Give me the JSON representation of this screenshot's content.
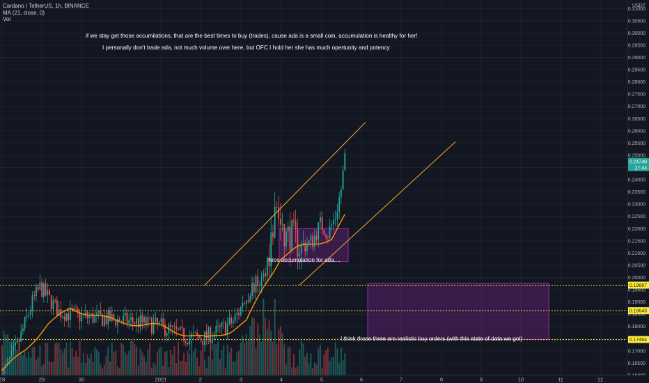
{
  "legend": {
    "symbol_line": "Cardano / TetherUS, 1h, BINANCE",
    "ma_line": "MA (21, close, 0)",
    "vol_line": "Vol"
  },
  "currency": "USDT",
  "colors": {
    "background": "#131722",
    "up": "#26a69a",
    "down": "#ef5350",
    "ma": "#ff9800",
    "channel": "#ffa726",
    "box": "#9c27b0",
    "level": "#ffeb3b",
    "last_price": "#26a69a"
  },
  "chart_data": {
    "type": "candlestick",
    "x_axis_ticks": [
      "28",
      "29",
      "30",
      "2021",
      "2",
      "3",
      "4",
      "5",
      "6",
      "7",
      "8",
      "9",
      "10",
      "11",
      "12"
    ],
    "y_axis_ticks": [
      "0.31000",
      "0.30500",
      "0.30000",
      "0.29500",
      "0.29000",
      "0.28500",
      "0.28000",
      "0.27500",
      "0.27000",
      "0.26500",
      "0.26000",
      "0.25500",
      "0.25000",
      "0.24500",
      "0.24000",
      "0.23500",
      "0.23000",
      "0.22500",
      "0.22000",
      "0.21500",
      "0.21000",
      "0.20500",
      "0.20000",
      "0.19500",
      "0.19000",
      "0.18500",
      "0.18000",
      "0.17500",
      "0.17000",
      "0.16500",
      "0.16000"
    ],
    "y_range": [
      0.158,
      0.3115
    ],
    "x_range": [
      27.9,
      13.3
    ],
    "last_price": {
      "price": "0.24748",
      "countdown": "27:44",
      "value": 0.24748
    },
    "levels": [
      {
        "label": "0.19687",
        "value": 0.19687
      },
      {
        "label": "0.18643",
        "value": 0.18643
      },
      {
        "label": "0.17464",
        "value": 0.17464
      }
    ],
    "ma_anchors": [
      [
        0,
        0.162
      ],
      [
        12,
        0.17
      ],
      [
        24,
        0.181
      ],
      [
        36,
        0.187
      ],
      [
        48,
        0.185
      ],
      [
        60,
        0.182
      ],
      [
        72,
        0.181
      ],
      [
        84,
        0.18
      ],
      [
        96,
        0.177
      ],
      [
        108,
        0.175
      ],
      [
        120,
        0.178
      ],
      [
        129,
        0.182
      ],
      [
        138,
        0.196
      ],
      [
        147,
        0.208
      ],
      [
        156,
        0.212
      ],
      [
        165,
        0.214
      ],
      [
        174,
        0.216
      ],
      [
        181,
        0.225
      ]
    ],
    "candle_path_anchors": [
      [
        0,
        0.16
      ],
      [
        8,
        0.172
      ],
      [
        16,
        0.19
      ],
      [
        20,
        0.196
      ],
      [
        30,
        0.186
      ],
      [
        42,
        0.184
      ],
      [
        56,
        0.183
      ],
      [
        70,
        0.182
      ],
      [
        84,
        0.18
      ],
      [
        96,
        0.176
      ],
      [
        106,
        0.175
      ],
      [
        114,
        0.178
      ],
      [
        122,
        0.182
      ],
      [
        128,
        0.19
      ],
      [
        132,
        0.196
      ],
      [
        138,
        0.2
      ],
      [
        142,
        0.215
      ],
      [
        145,
        0.23
      ],
      [
        148,
        0.215
      ],
      [
        152,
        0.218
      ],
      [
        158,
        0.212
      ],
      [
        164,
        0.215
      ],
      [
        168,
        0.222
      ],
      [
        172,
        0.218
      ],
      [
        176,
        0.225
      ],
      [
        179,
        0.236
      ],
      [
        181,
        0.249
      ]
    ],
    "annotations": [
      {
        "text": "if we stay get those accumilations, that are the best times to buy (trades), cause ada is a small coin, accumulation is healthy for her!"
      },
      {
        "text": "I personally don't trade ada, not much volume over here, but OFC I hold her she has much opertunity and potency"
      },
      {
        "text": "Nice accumulation for ada...."
      },
      {
        "text": "I think those three are realistic buy orders (with this state of data we got)"
      }
    ],
    "channel_lines": [
      {
        "from": [
          0.19687,
          0.19687
        ],
        "to": [
          0.2635,
          0.2635
        ]
      },
      {
        "from": [
          0.19687,
          0.19687
        ],
        "to": [
          0.2555,
          0.2555
        ]
      }
    ],
    "accumulation_box": {
      "top": 0.22,
      "bottom": 0.2065
    },
    "buy_zone_box": {
      "top": 0.19765,
      "bottom": 0.17464
    }
  }
}
